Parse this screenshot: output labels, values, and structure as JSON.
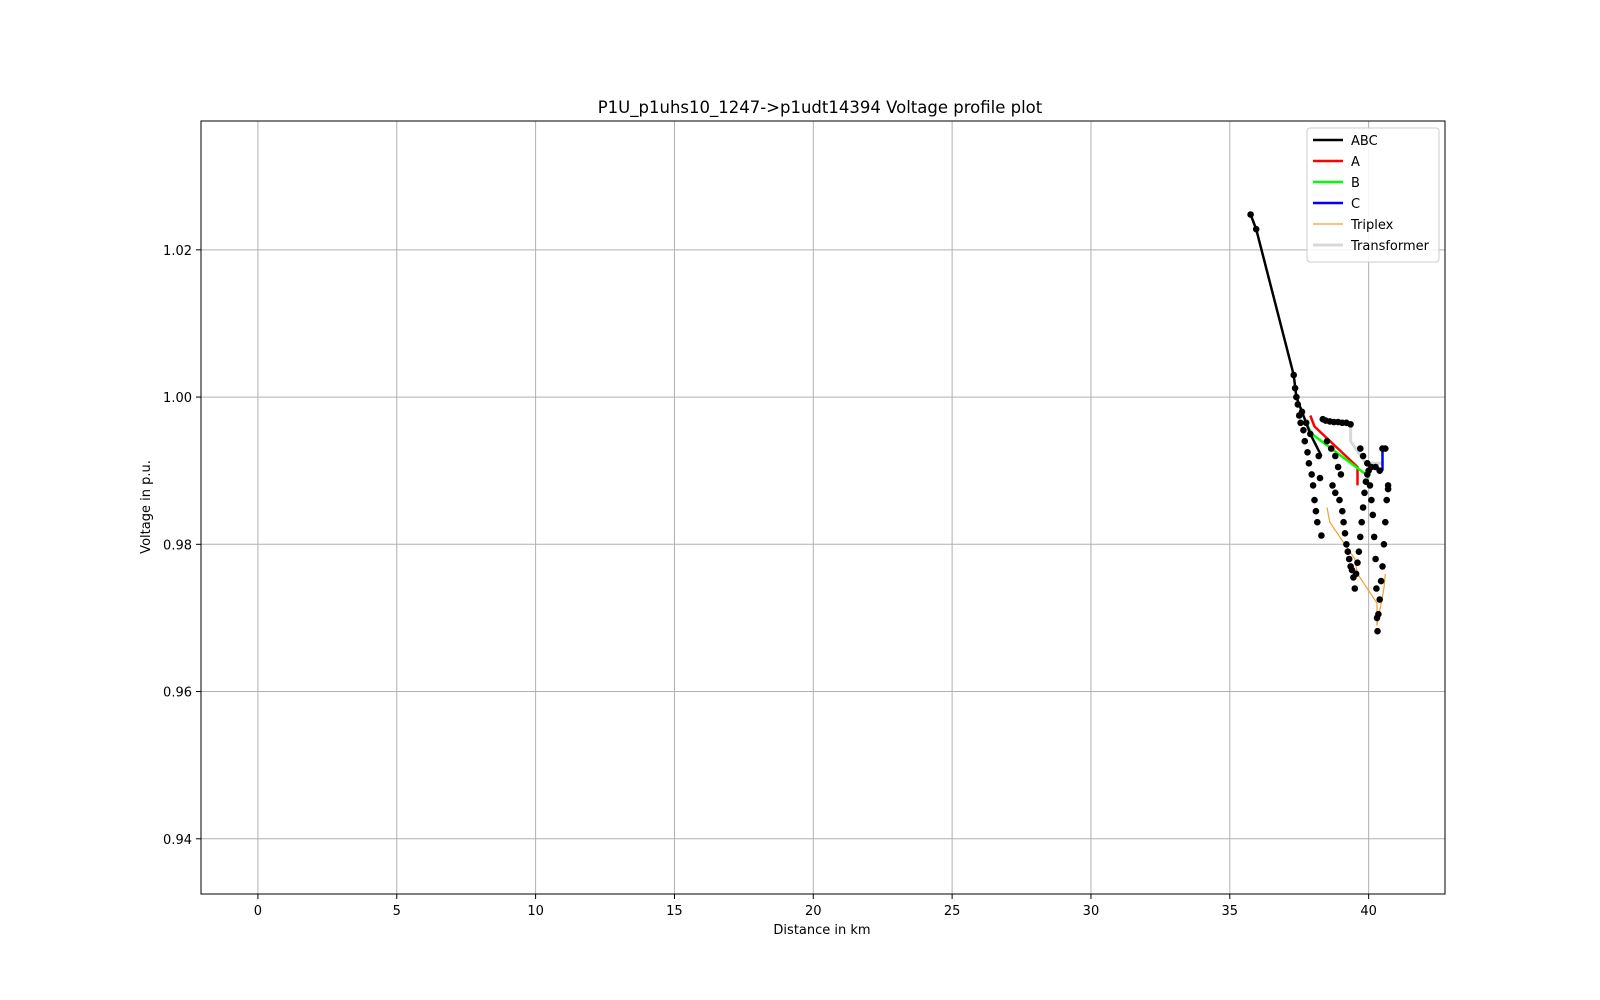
{
  "chart_data": {
    "type": "line",
    "title": "P1U_p1uhs10_1247->p1udt14394 Voltage profile plot",
    "xlabel": "Distance in km",
    "ylabel": "Voltage in p.u.",
    "xlim": [
      -2.05,
      42.75
    ],
    "ylim": [
      0.9325,
      1.0375
    ],
    "xticks": [
      0,
      5,
      10,
      15,
      20,
      25,
      30,
      35,
      40
    ],
    "yticks": [
      0.94,
      0.96,
      0.98,
      1.0,
      1.02
    ],
    "ytick_labels": [
      "0.94",
      "0.96",
      "0.98",
      "1.00",
      "1.02"
    ],
    "grid": true,
    "legend_position": "top-right",
    "legend": [
      {
        "label": "ABC",
        "color": "#000000",
        "width": 2.5
      },
      {
        "label": "A",
        "color": "#ff0000",
        "width": 2.5
      },
      {
        "label": "B",
        "color": "#00ff00",
        "width": 2.5
      },
      {
        "label": "C",
        "color": "#0000ff",
        "width": 2.5
      },
      {
        "label": "Triplex",
        "color": "#f0a030",
        "width": 1.2
      },
      {
        "label": "Transformer",
        "color": "#d8d8d8",
        "width": 3
      }
    ],
    "series": [
      {
        "name": "ABC",
        "color": "#000000",
        "x": [
          35.75,
          35.95,
          37.3,
          37.4,
          37.6,
          37.9,
          38.3
        ],
        "y": [
          1.0248,
          1.0228,
          1.003,
          1.0,
          0.998,
          0.995,
          0.992
        ]
      },
      {
        "name": "A",
        "color": "#ff0000",
        "x": [
          37.9,
          38.05,
          39.6,
          39.6
        ],
        "y": [
          0.9975,
          0.996,
          0.9905,
          0.988
        ]
      },
      {
        "name": "B",
        "color": "#00ff00",
        "x": [
          37.75,
          37.95,
          39.9,
          40.0
        ],
        "y": [
          0.9965,
          0.995,
          0.9895,
          0.989
        ]
      },
      {
        "name": "C",
        "color": "#0000ff",
        "x": [
          40.5,
          40.5,
          40.65
        ],
        "y": [
          0.99,
          0.993,
          0.993
        ]
      },
      {
        "name": "Triplex",
        "color": "#f0a030",
        "x": [
          38.5,
          38.6,
          39.5,
          39.6,
          40.3,
          40.3,
          40.55,
          40.6
        ],
        "y": [
          0.985,
          0.983,
          0.978,
          0.976,
          0.972,
          0.969,
          0.974,
          0.976
        ]
      },
      {
        "name": "Transformer",
        "color": "#d8d8d8",
        "x": [
          38.3,
          39.35,
          39.35,
          39.9,
          40.5
        ],
        "y": [
          0.997,
          0.9965,
          0.994,
          0.991,
          0.991
        ]
      }
    ],
    "markers": {
      "color": "#000000",
      "points": [
        [
          35.75,
          1.0248
        ],
        [
          35.95,
          1.0228
        ],
        [
          37.3,
          1.003
        ],
        [
          37.35,
          1.0012
        ],
        [
          37.4,
          1.0
        ],
        [
          37.45,
          0.999
        ],
        [
          37.5,
          0.9975
        ],
        [
          37.55,
          0.9965
        ],
        [
          37.6,
          0.998
        ],
        [
          37.65,
          0.9955
        ],
        [
          37.7,
          0.994
        ],
        [
          37.75,
          0.9965
        ],
        [
          37.8,
          0.9925
        ],
        [
          37.85,
          0.991
        ],
        [
          37.9,
          0.995
        ],
        [
          37.95,
          0.9895
        ],
        [
          38.0,
          0.988
        ],
        [
          38.05,
          0.986
        ],
        [
          38.1,
          0.9845
        ],
        [
          38.15,
          0.983
        ],
        [
          38.2,
          0.992
        ],
        [
          38.25,
          0.989
        ],
        [
          38.3,
          0.9812
        ],
        [
          38.35,
          0.997
        ],
        [
          38.45,
          0.9968
        ],
        [
          38.6,
          0.9967
        ],
        [
          38.75,
          0.9966
        ],
        [
          38.9,
          0.9966
        ],
        [
          39.05,
          0.9965
        ],
        [
          39.2,
          0.9965
        ],
        [
          39.35,
          0.9963
        ],
        [
          38.5,
          0.994
        ],
        [
          38.65,
          0.993
        ],
        [
          38.8,
          0.992
        ],
        [
          38.9,
          0.9905
        ],
        [
          39.0,
          0.9895
        ],
        [
          38.7,
          0.988
        ],
        [
          38.8,
          0.987
        ],
        [
          38.95,
          0.986
        ],
        [
          39.05,
          0.9845
        ],
        [
          39.1,
          0.983
        ],
        [
          39.15,
          0.9815
        ],
        [
          39.2,
          0.98
        ],
        [
          39.25,
          0.979
        ],
        [
          39.3,
          0.978
        ],
        [
          39.35,
          0.977
        ],
        [
          39.4,
          0.9765
        ],
        [
          39.45,
          0.9755
        ],
        [
          39.5,
          0.974
        ],
        [
          39.55,
          0.976
        ],
        [
          39.6,
          0.9775
        ],
        [
          39.65,
          0.979
        ],
        [
          39.7,
          0.981
        ],
        [
          39.75,
          0.983
        ],
        [
          39.8,
          0.985
        ],
        [
          39.85,
          0.987
        ],
        [
          39.9,
          0.9885
        ],
        [
          39.95,
          0.9895
        ],
        [
          40.0,
          0.99
        ],
        [
          40.05,
          0.988
        ],
        [
          40.1,
          0.986
        ],
        [
          40.15,
          0.984
        ],
        [
          40.2,
          0.981
        ],
        [
          40.25,
          0.978
        ],
        [
          40.28,
          0.974
        ],
        [
          40.3,
          0.97
        ],
        [
          40.32,
          0.9682
        ],
        [
          40.35,
          0.9705
        ],
        [
          40.4,
          0.9725
        ],
        [
          40.45,
          0.975
        ],
        [
          40.5,
          0.977
        ],
        [
          40.55,
          0.98
        ],
        [
          40.6,
          0.983
        ],
        [
          40.65,
          0.986
        ],
        [
          40.7,
          0.988
        ],
        [
          40.5,
          0.993
        ],
        [
          40.6,
          0.993
        ],
        [
          40.7,
          0.9875
        ],
        [
          39.7,
          0.993
        ],
        [
          39.8,
          0.992
        ],
        [
          39.95,
          0.991
        ],
        [
          40.1,
          0.9905
        ],
        [
          40.25,
          0.9905
        ],
        [
          40.4,
          0.99
        ]
      ]
    }
  }
}
